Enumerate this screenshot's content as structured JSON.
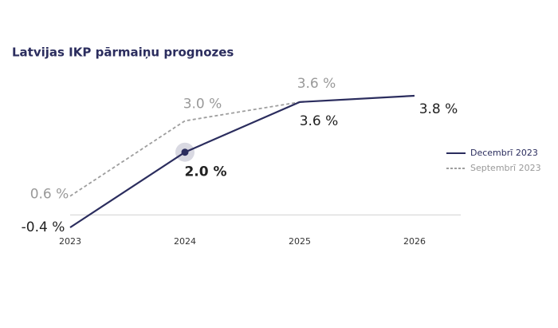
{
  "chart_data": {
    "type": "line",
    "title": "Latvijas IKP pārmaiņu prognozes",
    "categories": [
      "2023",
      "2024",
      "2025",
      "2026"
    ],
    "series": [
      {
        "name": "Decembrī 2023",
        "color": "#2b2d5e",
        "values": [
          -0.4,
          2.0,
          3.6,
          3.8
        ],
        "value_labels": [
          "-0.4 %",
          "2.0 %",
          "3.6 %",
          "3.8 %"
        ]
      },
      {
        "name": "Septembrī 2023",
        "color": "#9e9e9e",
        "dashed": true,
        "values": [
          0.6,
          3.0,
          3.6,
          null
        ],
        "value_labels": [
          "0.6 %",
          "3.0 %",
          "3.6 %",
          null
        ]
      }
    ],
    "ylim": [
      -0.4,
      3.8
    ]
  }
}
